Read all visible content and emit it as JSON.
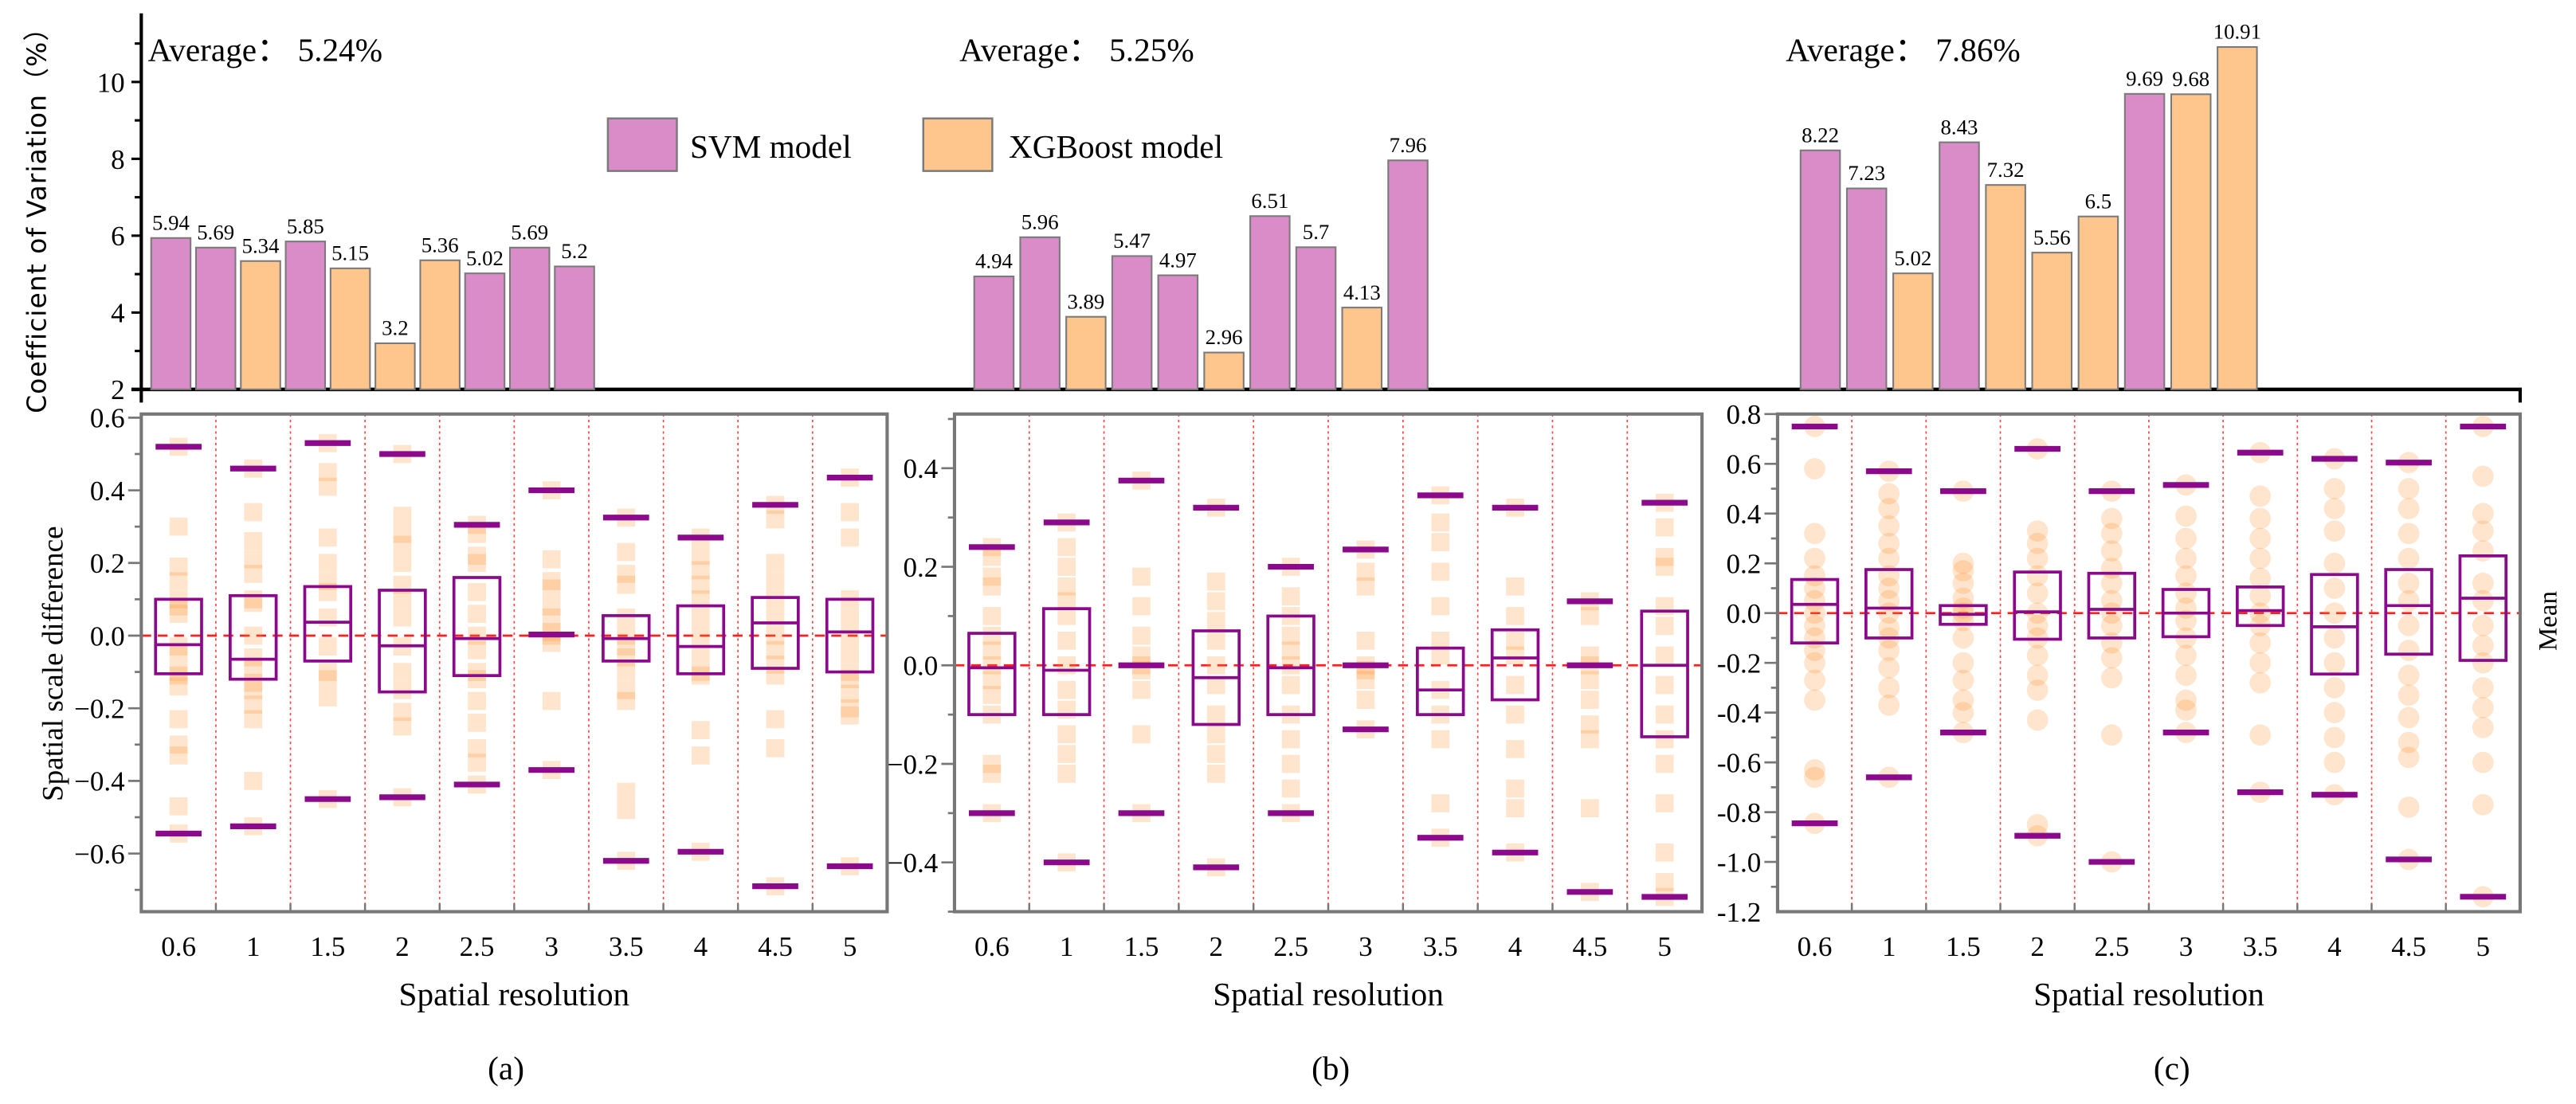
{
  "chart_data": [
    {
      "type": "bar",
      "ylabel": "Coefficient of Variation（%）",
      "ylim": [
        2,
        11
      ],
      "yticks": [
        2,
        4,
        6,
        8,
        10
      ],
      "legend": {
        "placement": "top-center",
        "entries": [
          "SVM model",
          "XGBoost model"
        ]
      },
      "colors": {
        "SVM model": "#d98cc8",
        "XGBoost model": "#fec68c"
      },
      "groups": [
        {
          "annotation": "Average： 5.24%",
          "values": [
            5.94,
            5.69,
            5.34,
            5.85,
            5.15,
            3.2,
            5.36,
            5.02,
            5.69,
            5.2
          ],
          "models": [
            "SVM model",
            "SVM model",
            "XGBoost model",
            "SVM model",
            "XGBoost model",
            "XGBoost model",
            "XGBoost model",
            "SVM model",
            "SVM model",
            "SVM model"
          ]
        },
        {
          "annotation": "Average： 5.25%",
          "values": [
            4.94,
            5.96,
            3.89,
            5.47,
            4.97,
            2.96,
            6.51,
            5.7,
            4.13,
            7.96
          ],
          "models": [
            "SVM model",
            "SVM model",
            "XGBoost model",
            "SVM model",
            "SVM model",
            "XGBoost model",
            "SVM model",
            "SVM model",
            "XGBoost model",
            "SVM model"
          ]
        },
        {
          "annotation": "Average： 7.86%",
          "values": [
            8.22,
            7.23,
            5.02,
            8.43,
            7.32,
            5.56,
            6.5,
            9.69,
            9.68,
            10.91
          ],
          "models": [
            "SVM model",
            "SVM model",
            "XGBoost model",
            "SVM model",
            "XGBoost model",
            "XGBoost model",
            "XGBoost model",
            "SVM model",
            "XGBoost model",
            "XGBoost model"
          ]
        }
      ]
    },
    {
      "type": "box",
      "panel": "(a)",
      "xlabel": "Spatial resolution",
      "ylabel": "Spatial scale difference",
      "marker": "square",
      "ylim": [
        -0.76,
        0.61
      ],
      "yticks": [
        "0.6",
        "0.4",
        "0.2",
        "0.0",
        "−0.2",
        "−0.4",
        "−0.6"
      ],
      "ytick_values": [
        0.6,
        0.4,
        0.2,
        0.0,
        -0.2,
        -0.4,
        -0.6
      ],
      "categories": [
        "0.6",
        "1",
        "1.5",
        "2",
        "2.5",
        "3",
        "3.5",
        "4",
        "4.5",
        "5"
      ],
      "boxes": [
        {
          "q3": 0.1,
          "mid": -0.025,
          "q1": -0.105,
          "max": 0.52,
          "min": -0.545
        },
        {
          "q3": 0.11,
          "mid": -0.065,
          "q1": -0.12,
          "max": 0.46,
          "min": -0.525
        },
        {
          "q3": 0.135,
          "mid": 0.037,
          "q1": -0.07,
          "max": 0.53,
          "min": -0.45
        },
        {
          "q3": 0.125,
          "mid": -0.028,
          "q1": -0.155,
          "max": 0.5,
          "min": -0.445
        },
        {
          "q3": 0.16,
          "mid": -0.008,
          "q1": -0.11,
          "max": 0.305,
          "min": -0.41
        },
        {
          "q3": 0.003,
          "mid": 0.003,
          "q1": 0.003,
          "max": 0.4,
          "min": -0.37
        },
        {
          "q3": 0.055,
          "mid": -0.008,
          "q1": -0.07,
          "max": 0.325,
          "min": -0.62
        },
        {
          "q3": 0.082,
          "mid": -0.03,
          "q1": -0.105,
          "max": 0.27,
          "min": -0.595
        },
        {
          "q3": 0.105,
          "mid": 0.035,
          "q1": -0.09,
          "max": 0.36,
          "min": -0.69
        },
        {
          "q3": 0.1,
          "mid": 0.01,
          "q1": -0.1,
          "max": 0.435,
          "min": -0.635
        }
      ],
      "points": [
        [
          0.52,
          0.3,
          0.19,
          0.15,
          0.1,
          0.08,
          0.06,
          -0.03,
          -0.05,
          -0.1,
          -0.11,
          -0.14,
          -0.23,
          -0.3,
          -0.33,
          -0.47,
          -0.545
        ],
        [
          0.46,
          0.34,
          0.26,
          0.21,
          0.17,
          0.1,
          0.09,
          0.0,
          -0.06,
          -0.09,
          -0.13,
          -0.15,
          -0.19,
          -0.23,
          -0.4,
          -0.525
        ],
        [
          0.53,
          0.45,
          0.41,
          0.27,
          0.2,
          0.15,
          0.12,
          0.05,
          -0.03,
          -0.1,
          -0.12,
          -0.17,
          -0.45
        ],
        [
          0.5,
          0.33,
          0.28,
          0.25,
          0.2,
          0.14,
          0.1,
          0.05,
          -0.03,
          -0.1,
          -0.15,
          -0.21,
          -0.25,
          -0.445
        ],
        [
          0.305,
          0.28,
          0.22,
          0.2,
          0.12,
          0.06,
          0.0,
          -0.04,
          -0.1,
          -0.12,
          -0.18,
          -0.24,
          -0.31,
          -0.35,
          -0.41
        ],
        [
          0.4,
          0.21,
          0.15,
          0.13,
          0.08,
          0.05,
          0.01,
          0.0,
          -0.02,
          -0.18,
          -0.37
        ],
        [
          0.325,
          0.23,
          0.17,
          0.14,
          0.05,
          0.0,
          -0.03,
          -0.06,
          -0.1,
          -0.15,
          -0.18,
          -0.43,
          -0.48,
          -0.62
        ],
        [
          0.27,
          0.22,
          0.18,
          0.14,
          0.1,
          0.05,
          0.0,
          -0.05,
          -0.1,
          -0.11,
          -0.26,
          -0.33,
          -0.595
        ],
        [
          0.36,
          0.32,
          0.2,
          0.15,
          0.1,
          0.05,
          0.0,
          -0.04,
          -0.08,
          -0.11,
          -0.23,
          -0.31,
          -0.69
        ],
        [
          0.435,
          0.34,
          0.27,
          0.1,
          0.05,
          0.0,
          -0.05,
          -0.1,
          -0.12,
          -0.16,
          -0.2,
          -0.22,
          -0.635
        ]
      ]
    },
    {
      "type": "box",
      "panel": "(b)",
      "xlabel": "Spatial resolution",
      "marker": "square",
      "ylim": [
        -0.5,
        0.51
      ],
      "yticks": [
        "0.4",
        "0.2",
        "0.0",
        "−0.2",
        "−0.4"
      ],
      "ytick_values": [
        0.4,
        0.2,
        0.0,
        -0.2,
        -0.4
      ],
      "categories": [
        "0.6",
        "1",
        "1.5",
        "2",
        "2.5",
        "3",
        "3.5",
        "4",
        "4.5",
        "5"
      ],
      "boxes": [
        {
          "q3": 0.065,
          "mid": -0.005,
          "q1": -0.1,
          "max": 0.24,
          "min": -0.3
        },
        {
          "q3": 0.115,
          "mid": -0.01,
          "q1": -0.1,
          "max": 0.29,
          "min": -0.4
        },
        {
          "q3": 0.0,
          "mid": 0.0,
          "q1": 0.0,
          "max": 0.375,
          "min": -0.3
        },
        {
          "q3": 0.07,
          "mid": -0.025,
          "q1": -0.12,
          "max": 0.32,
          "min": -0.41
        },
        {
          "q3": 0.1,
          "mid": -0.005,
          "q1": -0.1,
          "max": 0.2,
          "min": -0.3
        },
        {
          "q3": 0.0,
          "mid": 0.0,
          "q1": 0.0,
          "max": 0.235,
          "min": -0.13
        },
        {
          "q3": 0.035,
          "mid": -0.05,
          "q1": -0.1,
          "max": 0.345,
          "min": -0.35
        },
        {
          "q3": 0.072,
          "mid": 0.015,
          "q1": -0.07,
          "max": 0.32,
          "min": -0.38
        },
        {
          "q3": 0.0,
          "mid": 0.0,
          "q1": 0.0,
          "max": 0.13,
          "min": -0.46
        },
        {
          "q3": 0.11,
          "mid": 0.0,
          "q1": -0.145,
          "max": 0.33,
          "min": -0.47
        }
      ],
      "points": [
        [
          0.24,
          0.22,
          0.18,
          0.16,
          0.1,
          0.06,
          0.03,
          0.0,
          -0.03,
          -0.06,
          -0.1,
          -0.2,
          -0.22,
          -0.3
        ],
        [
          0.29,
          0.24,
          0.2,
          0.16,
          0.13,
          0.1,
          0.05,
          0.0,
          -0.05,
          -0.09,
          -0.14,
          -0.18,
          -0.22,
          -0.4
        ],
        [
          0.375,
          0.18,
          0.12,
          0.06,
          0.02,
          0.0,
          -0.01,
          -0.05,
          -0.14,
          -0.3
        ],
        [
          0.32,
          0.17,
          0.13,
          0.09,
          0.05,
          0.0,
          -0.04,
          -0.1,
          -0.14,
          -0.18,
          -0.22,
          -0.41
        ],
        [
          0.2,
          0.14,
          0.1,
          0.06,
          0.03,
          0.0,
          -0.04,
          -0.1,
          -0.15,
          -0.2,
          -0.25,
          -0.3
        ],
        [
          0.235,
          0.19,
          0.16,
          0.05,
          0.0,
          -0.01,
          -0.03,
          -0.07,
          -0.13
        ],
        [
          0.345,
          0.29,
          0.25,
          0.19,
          0.12,
          0.05,
          0.02,
          -0.05,
          -0.1,
          -0.15,
          -0.28,
          -0.35
        ],
        [
          0.32,
          0.16,
          0.1,
          0.05,
          0.02,
          -0.04,
          -0.1,
          -0.17,
          -0.25,
          -0.29,
          -0.38
        ],
        [
          0.13,
          0.1,
          0.02,
          0.0,
          -0.03,
          -0.07,
          -0.12,
          -0.15,
          -0.29,
          -0.46
        ],
        [
          0.33,
          0.28,
          0.22,
          0.2,
          0.12,
          0.08,
          0.02,
          -0.04,
          -0.1,
          -0.15,
          -0.2,
          -0.28,
          -0.38,
          -0.44,
          -0.47
        ]
      ]
    },
    {
      "type": "box",
      "panel": "(c)",
      "xlabel": "Spatial resolution",
      "right_label": "Mean",
      "marker": "circle",
      "ylim": [
        -1.2,
        0.8
      ],
      "yticks": [
        "0.8",
        "0.6",
        "0.4",
        "0.2",
        "0.0",
        "-0.2",
        "-0.4",
        "-0.6",
        "-0.8",
        "-1.0",
        "-1.2"
      ],
      "ytick_values": [
        0.8,
        0.6,
        0.4,
        0.2,
        0.0,
        -0.2,
        -0.4,
        -0.6,
        -0.8,
        -1.0,
        -1.2
      ],
      "categories": [
        "0.6",
        "1",
        "1.5",
        "2",
        "2.5",
        "3",
        "3.5",
        "4",
        "4.5",
        "5"
      ],
      "boxes": [
        {
          "q3": 0.135,
          "mid": 0.035,
          "q1": -0.12,
          "max": 0.75,
          "min": -0.845
        },
        {
          "q3": 0.175,
          "mid": 0.02,
          "q1": -0.1,
          "max": 0.57,
          "min": -0.66
        },
        {
          "q3": 0.03,
          "mid": -0.005,
          "q1": -0.045,
          "max": 0.49,
          "min": -0.48
        },
        {
          "q3": 0.165,
          "mid": 0.005,
          "q1": -0.105,
          "max": 0.66,
          "min": -0.895
        },
        {
          "q3": 0.16,
          "mid": 0.015,
          "q1": -0.1,
          "max": 0.49,
          "min": -1.0
        },
        {
          "q3": 0.095,
          "mid": 0.0,
          "q1": -0.095,
          "max": 0.515,
          "min": -0.48
        },
        {
          "q3": 0.105,
          "mid": 0.01,
          "q1": -0.05,
          "max": 0.645,
          "min": -0.72
        },
        {
          "q3": 0.155,
          "mid": -0.055,
          "q1": -0.245,
          "max": 0.62,
          "min": -0.73
        },
        {
          "q3": 0.175,
          "mid": 0.03,
          "q1": -0.165,
          "max": 0.605,
          "min": -0.99
        },
        {
          "q3": 0.23,
          "mid": 0.06,
          "q1": -0.19,
          "max": 0.75,
          "min": -1.14
        }
      ],
      "points": [
        [
          0.75,
          0.58,
          0.32,
          0.22,
          0.15,
          0.1,
          0.05,
          0.0,
          -0.05,
          -0.1,
          -0.15,
          -0.2,
          -0.27,
          -0.35,
          -0.63,
          -0.66,
          -0.845
        ],
        [
          0.57,
          0.48,
          0.42,
          0.35,
          0.28,
          0.22,
          0.15,
          0.1,
          0.05,
          0.0,
          -0.06,
          -0.1,
          -0.15,
          -0.22,
          -0.3,
          -0.37,
          -0.66
        ],
        [
          0.49,
          0.2,
          0.17,
          0.12,
          0.06,
          0.02,
          0.0,
          -0.03,
          -0.1,
          -0.2,
          -0.27,
          -0.35,
          -0.4,
          -0.48
        ],
        [
          0.66,
          0.33,
          0.28,
          0.22,
          0.15,
          0.08,
          0.0,
          -0.05,
          -0.1,
          -0.17,
          -0.25,
          -0.31,
          -0.43,
          -0.85,
          -0.895
        ],
        [
          0.49,
          0.38,
          0.32,
          0.25,
          0.18,
          0.12,
          0.05,
          0.0,
          -0.05,
          -0.12,
          -0.18,
          -0.26,
          -0.49,
          -1.0
        ],
        [
          0.515,
          0.39,
          0.3,
          0.22,
          0.15,
          0.08,
          0.02,
          -0.03,
          -0.1,
          -0.17,
          -0.25,
          -0.35,
          -0.39,
          -0.48
        ],
        [
          0.645,
          0.47,
          0.38,
          0.3,
          0.22,
          0.14,
          0.07,
          0.0,
          -0.05,
          -0.12,
          -0.2,
          -0.28,
          -0.49,
          -0.72
        ],
        [
          0.62,
          0.5,
          0.42,
          0.33,
          0.2,
          0.1,
          0.0,
          -0.1,
          -0.2,
          -0.3,
          -0.4,
          -0.5,
          -0.6,
          -0.73
        ],
        [
          0.605,
          0.5,
          0.42,
          0.32,
          0.22,
          0.12,
          0.05,
          -0.05,
          -0.15,
          -0.25,
          -0.33,
          -0.42,
          -0.52,
          -0.58,
          -0.78,
          -0.99
        ],
        [
          0.75,
          0.55,
          0.4,
          0.33,
          0.25,
          0.12,
          0.05,
          -0.05,
          -0.13,
          -0.2,
          -0.3,
          -0.38,
          -0.46,
          -0.6,
          -0.77,
          -1.14
        ]
      ]
    }
  ],
  "colors": {
    "box": "#8b0a8b",
    "point": "#ff8a1a",
    "zero_line": "#ff2020",
    "separator": "#ff4040"
  }
}
